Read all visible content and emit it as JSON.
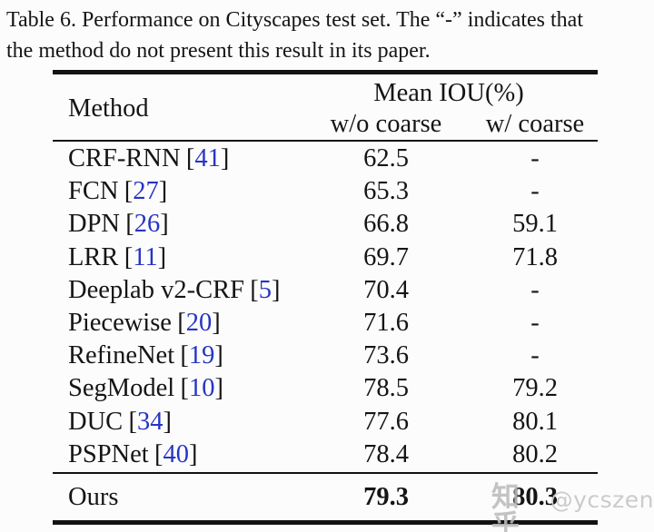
{
  "caption": {
    "line1": "Table 6. Performance on Cityscapes test set. The “-” indicates that",
    "line2": "the method do not present this result in its paper."
  },
  "table": {
    "columns": {
      "method": "Method",
      "group": "Mean IOU(%)",
      "sub1": "w/o coarse",
      "sub2": "w/ coarse"
    },
    "cite_open": "[",
    "cite_close": "]",
    "rows": [
      {
        "name": "CRF-RNN",
        "cite": "41",
        "wo": "62.5",
        "w": "-"
      },
      {
        "name": "FCN",
        "cite": "27",
        "wo": "65.3",
        "w": "-"
      },
      {
        "name": "DPN",
        "cite": "26",
        "wo": "66.8",
        "w": "59.1"
      },
      {
        "name": "LRR",
        "cite": "11",
        "wo": "69.7",
        "w": "71.8"
      },
      {
        "name": "Deeplab v2-CRF",
        "cite": "5",
        "wo": "70.4",
        "w": "-"
      },
      {
        "name": "Piecewise",
        "cite": "20",
        "wo": "71.6",
        "w": "-"
      },
      {
        "name": "RefineNet",
        "cite": "19",
        "wo": "73.6",
        "w": "-"
      },
      {
        "name": "SegModel",
        "cite": "10",
        "wo": "78.5",
        "w": "79.2"
      },
      {
        "name": "DUC",
        "cite": "34",
        "wo": "77.6",
        "w": "80.1"
      },
      {
        "name": "PSPNet",
        "cite": "40",
        "wo": "78.4",
        "w": "80.2"
      }
    ],
    "summary_row": {
      "name": "Ours",
      "cite": null,
      "wo": "79.3",
      "w": "80.3",
      "bold": true
    }
  },
  "watermark": {
    "cjk": "知乎",
    "handle": "@ycszen"
  },
  "colors": {
    "citation_blue": "#2635c4",
    "text": "#151515",
    "watermark_gray": "#cbcbcb",
    "background": "#fcfcfc"
  }
}
